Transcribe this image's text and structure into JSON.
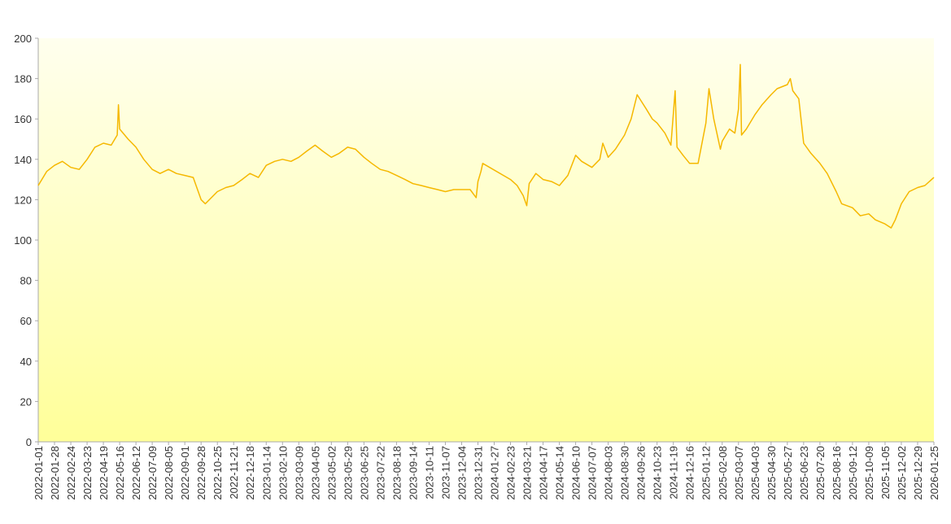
{
  "chart_data": {
    "type": "line",
    "x": [
      "2022-01-01",
      "2022-01-15",
      "2022-01-28",
      "2022-02-10",
      "2022-02-24",
      "2022-03-10",
      "2022-03-23",
      "2022-04-05",
      "2022-04-19",
      "2022-05-02",
      "2022-05-12",
      "2022-05-14",
      "2022-05-16",
      "2022-05-30",
      "2022-06-12",
      "2022-06-25",
      "2022-07-09",
      "2022-07-22",
      "2022-08-05",
      "2022-08-18",
      "2022-09-01",
      "2022-09-15",
      "2022-09-28",
      "2022-10-05",
      "2022-10-25",
      "2022-11-08",
      "2022-11-21",
      "2022-12-05",
      "2022-12-18",
      "2023-01-01",
      "2023-01-14",
      "2023-01-28",
      "2023-02-10",
      "2023-02-24",
      "2023-03-09",
      "2023-03-22",
      "2023-04-05",
      "2023-04-18",
      "2023-05-02",
      "2023-05-15",
      "2023-05-29",
      "2023-06-11",
      "2023-06-25",
      "2023-07-08",
      "2023-07-22",
      "2023-08-04",
      "2023-08-18",
      "2023-09-01",
      "2023-09-14",
      "2023-09-28",
      "2023-10-11",
      "2023-10-25",
      "2023-11-07",
      "2023-11-21",
      "2023-12-04",
      "2023-12-18",
      "2023-12-28",
      "2023-12-31",
      "2024-01-05",
      "2024-01-08",
      "2024-02-23",
      "2024-03-05",
      "2024-03-15",
      "2024-03-21",
      "2024-03-25",
      "2024-04-05",
      "2024-04-17",
      "2024-05-01",
      "2024-05-14",
      "2024-05-28",
      "2024-06-10",
      "2024-06-20",
      "2024-07-07",
      "2024-07-20",
      "2024-07-25",
      "2024-08-03",
      "2024-08-15",
      "2024-08-30",
      "2024-09-10",
      "2024-09-20",
      "2024-10-05",
      "2024-10-15",
      "2024-10-23",
      "2024-11-05",
      "2024-11-15",
      "2024-11-22",
      "2024-11-25",
      "2024-12-05",
      "2024-12-16",
      "2024-12-30",
      "2025-01-12",
      "2025-01-17",
      "2025-01-25",
      "2025-02-05",
      "2025-02-08",
      "2025-02-20",
      "2025-03-01",
      "2025-03-07",
      "2025-03-10",
      "2025-03-12",
      "2025-03-20",
      "2025-04-03",
      "2025-04-15",
      "2025-04-30",
      "2025-05-10",
      "2025-05-27",
      "2025-06-01",
      "2025-06-05",
      "2025-06-15",
      "2025-06-23",
      "2025-07-05",
      "2025-07-20",
      "2025-08-01",
      "2025-08-16",
      "2025-08-25",
      "2025-09-12",
      "2025-09-25",
      "2025-10-09",
      "2025-10-20",
      "2025-11-05",
      "2025-11-15",
      "2025-11-22",
      "2025-12-02",
      "2025-12-15",
      "2025-12-29",
      "2026-01-10",
      "2026-01-25"
    ],
    "series": [
      {
        "color": "#f5b800",
        "values": [
          127,
          134,
          137,
          139,
          136,
          135,
          140,
          146,
          148,
          147,
          152,
          167,
          155,
          150,
          146,
          140,
          135,
          133,
          135,
          133,
          132,
          131,
          120,
          118,
          124,
          126,
          127,
          130,
          133,
          131,
          137,
          139,
          140,
          139,
          141,
          144,
          147,
          144,
          141,
          143,
          146,
          145,
          141,
          138,
          135,
          134,
          132,
          130,
          128,
          127,
          126,
          125,
          124,
          125,
          125,
          125,
          121,
          129,
          134,
          138,
          130,
          127,
          122,
          117,
          128,
          133,
          130,
          129,
          127,
          132,
          142,
          139,
          136,
          140,
          148,
          141,
          145,
          152,
          160,
          172,
          165,
          160,
          158,
          153,
          147,
          174,
          146,
          142,
          138,
          138,
          158,
          175,
          160,
          145,
          149,
          155,
          153,
          165,
          187,
          152,
          155,
          162,
          167,
          172,
          175,
          177,
          180,
          174,
          170,
          148,
          143,
          138,
          133,
          124,
          118,
          116,
          112,
          113,
          110,
          108,
          106,
          110,
          118,
          124,
          126,
          127,
          131
        ]
      }
    ],
    "xlim": [
      "2022-01-01",
      "2026-01-25"
    ],
    "xticks": [
      "2022-01-01",
      "2022-01-28",
      "2022-02-24",
      "2022-03-23",
      "2022-04-19",
      "2022-05-16",
      "2022-06-12",
      "2022-07-09",
      "2022-08-05",
      "2022-09-01",
      "2022-09-28",
      "2022-10-25",
      "2022-11-21",
      "2022-12-18",
      "2023-01-14",
      "2023-02-10",
      "2023-03-09",
      "2023-04-05",
      "2023-05-02",
      "2023-05-29",
      "2023-06-25",
      "2023-07-22",
      "2023-08-18",
      "2023-09-14",
      "2023-10-11",
      "2023-11-07",
      "2023-12-04",
      "2023-12-31",
      "2024-01-27",
      "2024-02-23",
      "2024-03-21",
      "2024-04-17",
      "2024-05-14",
      "2024-06-10",
      "2024-07-07",
      "2024-08-03",
      "2024-08-30",
      "2024-09-26",
      "2024-10-23",
      "2024-11-19",
      "2024-12-16",
      "2025-01-12",
      "2025-02-08",
      "2025-03-07",
      "2025-04-03",
      "2025-04-30",
      "2025-05-27",
      "2025-06-23",
      "2025-07-20",
      "2025-08-16",
      "2025-09-12",
      "2025-10-09",
      "2025-11-05",
      "2025-12-02",
      "2025-12-29",
      "2026-01-25"
    ],
    "ylim": [
      0,
      200
    ],
    "yticks": [
      0,
      20,
      40,
      60,
      80,
      100,
      120,
      140,
      160,
      180,
      200
    ]
  }
}
